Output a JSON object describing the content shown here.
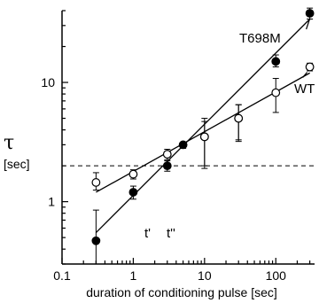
{
  "chart_data": {
    "type": "scatter",
    "xscale": "log",
    "yscale": "log",
    "xlim": [
      0.1,
      350
    ],
    "ylim": [
      0.3,
      40
    ],
    "xticks": [
      0.1,
      1,
      10,
      100
    ],
    "xtick_labels": [
      "0.1",
      "1",
      "10",
      "100"
    ],
    "yticks": [
      1,
      10
    ],
    "ytick_labels": [
      "1",
      "10"
    ],
    "xlabel": "duration of conditioning pulse [sec]",
    "ylabel": "τ",
    "ylabel_unit": "[sec]",
    "title": "",
    "grid": false,
    "legend": "none",
    "series": [
      {
        "name": "T698M",
        "marker": "filled-circle",
        "color": "#000000",
        "points": [
          {
            "x": 0.3,
            "y": 0.47,
            "lo": 0.3,
            "hi": 0.85
          },
          {
            "x": 1,
            "y": 1.2,
            "lo": 1.05,
            "hi": 1.35
          },
          {
            "x": 3,
            "y": 2.0,
            "lo": 1.8,
            "hi": 2.2
          },
          {
            "x": 5,
            "y": 3.0,
            "lo": 2.8,
            "hi": 3.15
          },
          {
            "x": 10,
            "y": 3.5,
            "lo": 2.0,
            "hi": 5.0
          },
          {
            "x": 30,
            "y": 5.0,
            "lo": 3.3,
            "hi": 6.5
          },
          {
            "x": 100,
            "y": 15,
            "lo": 13.5,
            "hi": 17
          },
          {
            "x": 300,
            "y": 38,
            "lo": 34,
            "hi": 42
          }
        ],
        "fit": {
          "x": [
            0.3,
            300
          ],
          "y": [
            0.55,
            34
          ]
        }
      },
      {
        "name": "WT",
        "marker": "open-circle",
        "color": "#000000",
        "points": [
          {
            "x": 0.3,
            "y": 1.45,
            "lo": 1.25,
            "hi": 1.75
          },
          {
            "x": 1,
            "y": 1.7,
            "lo": 1.55,
            "hi": 1.85
          },
          {
            "x": 3,
            "y": 2.5,
            "lo": 2.25,
            "hi": 2.75
          },
          {
            "x": 10,
            "y": 3.5,
            "lo": 1.9,
            "hi": 4.7
          },
          {
            "x": 30,
            "y": 5.0,
            "lo": 3.2,
            "hi": 6.5
          },
          {
            "x": 100,
            "y": 8.2,
            "lo": 5.6,
            "hi": 10.8
          },
          {
            "x": 300,
            "y": 13.5,
            "lo": 12.5,
            "hi": 14.5
          }
        ],
        "fit": {
          "x": [
            0.3,
            300
          ],
          "y": [
            1.2,
            12
          ]
        }
      }
    ],
    "reference_line": {
      "y": 2.0,
      "style": "dashed"
    },
    "annotations": [
      "t'",
      "t''"
    ]
  }
}
